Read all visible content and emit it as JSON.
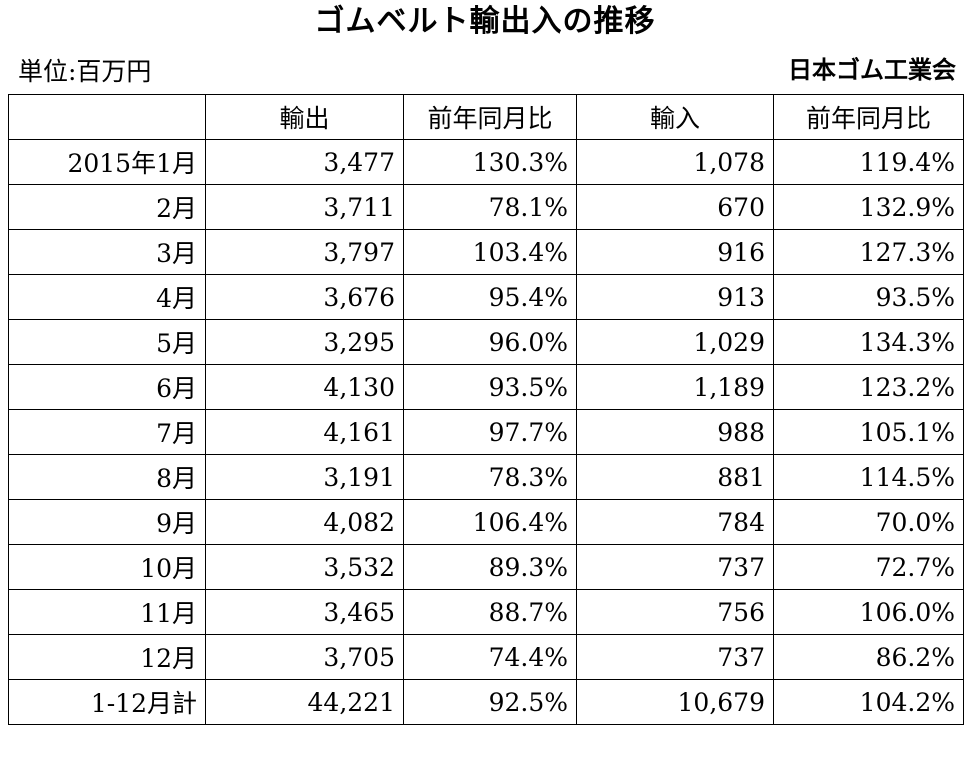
{
  "title": "ゴムベルト輸出入の推移",
  "unit": "単位:百万円",
  "organization": "日本ゴム工業会",
  "table": {
    "headers": [
      "",
      "輸出",
      "前年同月比",
      "輸入",
      "前年同月比"
    ],
    "rows": [
      [
        "2015年1月",
        "3,477",
        "130.3%",
        "1,078",
        "119.4%"
      ],
      [
        "2月",
        "3,711",
        "78.1%",
        "670",
        "132.9%"
      ],
      [
        "3月",
        "3,797",
        "103.4%",
        "916",
        "127.3%"
      ],
      [
        "4月",
        "3,676",
        "95.4%",
        "913",
        "93.5%"
      ],
      [
        "5月",
        "3,295",
        "96.0%",
        "1,029",
        "134.3%"
      ],
      [
        "6月",
        "4,130",
        "93.5%",
        "1,189",
        "123.2%"
      ],
      [
        "7月",
        "4,161",
        "97.7%",
        "988",
        "105.1%"
      ],
      [
        "8月",
        "3,191",
        "78.3%",
        "881",
        "114.5%"
      ],
      [
        "9月",
        "4,082",
        "106.4%",
        "784",
        "70.0%"
      ],
      [
        "10月",
        "3,532",
        "89.3%",
        "737",
        "72.7%"
      ],
      [
        "11月",
        "3,465",
        "88.7%",
        "756",
        "106.0%"
      ],
      [
        "12月",
        "3,705",
        "74.4%",
        "737",
        "86.2%"
      ],
      [
        "1-12月計",
        "44,221",
        "92.5%",
        "10,679",
        "104.2%"
      ]
    ]
  }
}
